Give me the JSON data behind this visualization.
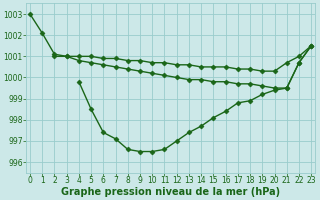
{
  "line1": {
    "x": [
      0,
      1,
      2,
      3,
      4,
      5,
      6,
      7,
      8,
      9,
      10,
      11,
      12,
      13,
      14,
      15,
      16,
      17,
      18,
      19,
      20,
      21,
      22,
      23
    ],
    "y": [
      1003.0,
      1002.1,
      1001.1,
      1001.0,
      1001.0,
      1001.0,
      1000.9,
      1000.9,
      1000.8,
      1000.8,
      1000.7,
      1000.7,
      1000.6,
      1000.6,
      1000.5,
      1000.5,
      1000.5,
      1000.4,
      1000.4,
      1000.3,
      1000.3,
      1000.7,
      1001.0,
      1001.5
    ],
    "color": "#1a6618",
    "marker": "D",
    "markersize": 2.5,
    "linewidth": 1.0
  },
  "line2": {
    "x": [
      2,
      3,
      4,
      5,
      6,
      7,
      8,
      9,
      10,
      11,
      12,
      13,
      14,
      15,
      16,
      17,
      18,
      19,
      20,
      21,
      22,
      23
    ],
    "y": [
      1001.0,
      1001.0,
      1000.8,
      1000.7,
      1000.6,
      1000.5,
      1000.4,
      1000.3,
      1000.2,
      1000.1,
      1000.0,
      999.9,
      999.9,
      999.8,
      999.8,
      999.7,
      999.7,
      999.6,
      999.5,
      999.5,
      1000.7,
      1001.5
    ],
    "color": "#1a6618",
    "marker": "D",
    "markersize": 2.5,
    "linewidth": 1.0
  },
  "line3": {
    "x": [
      4,
      5,
      6,
      7,
      8,
      9,
      10,
      11,
      12,
      13,
      14,
      15,
      16,
      17,
      18,
      19,
      20,
      21,
      22,
      23
    ],
    "y": [
      999.8,
      998.5,
      997.4,
      997.1,
      996.6,
      996.5,
      996.5,
      996.6,
      997.0,
      997.4,
      997.7,
      998.1,
      998.4,
      998.8,
      998.9,
      999.2,
      999.4,
      999.5,
      1000.7,
      1001.5
    ],
    "color": "#1a6618",
    "marker": "D",
    "markersize": 2.5,
    "linewidth": 1.0
  },
  "xlabel": "Graphe pression niveau de la mer (hPa)",
  "xticks": [
    0,
    1,
    2,
    3,
    4,
    5,
    6,
    7,
    8,
    9,
    10,
    11,
    12,
    13,
    14,
    15,
    16,
    17,
    18,
    19,
    20,
    21,
    22,
    23
  ],
  "xlim": [
    -0.3,
    23.3
  ],
  "ylim": [
    995.5,
    1003.5
  ],
  "yticks": [
    996,
    997,
    998,
    999,
    1000,
    1001,
    1002,
    1003
  ],
  "bg_color": "#cce8e8",
  "grid_color": "#99cccc",
  "text_color": "#1a6618",
  "tick_fontsize": 5.5,
  "xlabel_fontsize": 7.0
}
